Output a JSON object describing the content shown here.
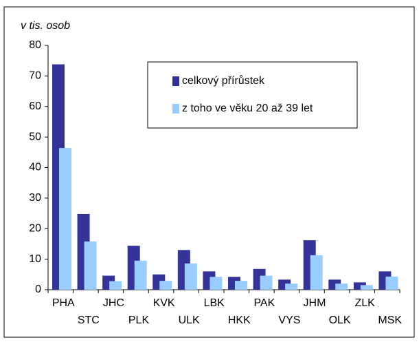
{
  "chart_data": {
    "type": "bar",
    "title": "v tis. osob",
    "categories": [
      "PHA",
      "STC",
      "JHC",
      "PLK",
      "KVK",
      "ULK",
      "LBK",
      "HKK",
      "PAK",
      "VYS",
      "JHM",
      "OLK",
      "ZLK",
      "MSK"
    ],
    "series": [
      {
        "name": "celkový přírůstek",
        "color": "#333399",
        "values": [
          73.8,
          24.8,
          4.6,
          14.4,
          5,
          13,
          6,
          4.2,
          6.8,
          3.3,
          16.2,
          3.3,
          2.4,
          6
        ]
      },
      {
        "name": "z toho ve věku 20 až 39 let",
        "color": "#99ccff",
        "values": [
          46.4,
          15.8,
          2.8,
          9.5,
          2.9,
          8.6,
          4.2,
          2.9,
          4.6,
          2,
          11.3,
          2,
          1.5,
          4.3
        ]
      }
    ],
    "ylim": [
      0,
      80
    ],
    "yticks": [
      0,
      10,
      20,
      30,
      40,
      50,
      60,
      70,
      80
    ],
    "grid": false,
    "legend": "top-right"
  }
}
